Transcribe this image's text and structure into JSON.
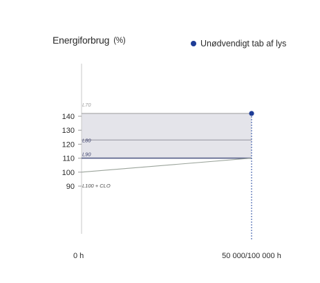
{
  "chart_data": {
    "type": "line",
    "ylabel": "Energiforbrug",
    "ylabel_unit": "(%)",
    "x_categories": [
      "0 h",
      "50 000/100 000 h"
    ],
    "yticks": [
      90,
      100,
      110,
      120,
      130,
      140
    ],
    "ylim": [
      80,
      150
    ],
    "band": {
      "from": 110,
      "to": 142
    },
    "series": [
      {
        "name": "L70",
        "values": [
          142,
          142
        ],
        "color": "#a5a5a5"
      },
      {
        "name": "L80",
        "values": [
          123,
          123
        ],
        "color": "#9b9aa6"
      },
      {
        "name": "L90",
        "values": [
          110,
          110
        ],
        "color": "#535c86"
      },
      {
        "name": "L100 + CLO",
        "values": [
          100,
          110
        ],
        "color": "#9aa39a"
      }
    ],
    "marker": {
      "x": "50 000/100 000 h",
      "y": 142,
      "color": "#1e3c96"
    },
    "legend": {
      "label": "Unødvendigt tab af lys",
      "position": "top-right"
    }
  }
}
